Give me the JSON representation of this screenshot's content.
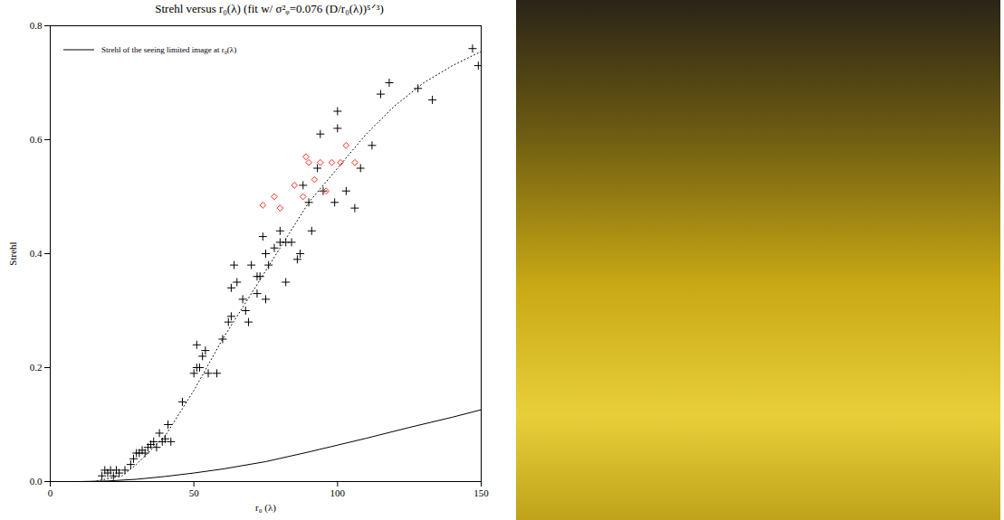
{
  "chart_data": {
    "type": "scatter",
    "title": "Strehl versus r₀(λ) (fit w/ σ²ᵩ=0.076 (D/r₀(λ))⁵ᐟ³)",
    "x_label": "r₀ (λ)",
    "y_label": "Strehl",
    "xlim": [
      0,
      150
    ],
    "xticks": [
      0,
      50,
      100,
      150
    ],
    "ylim": [
      0,
      0.8
    ],
    "yticks": [
      {
        "value": 0,
        "label": "0.0"
      },
      0.2,
      0.4,
      0.6,
      0.8
    ],
    "legend": "upper left",
    "series": [
      {
        "type": "scatter",
        "marker": "plus",
        "color": "#000000",
        "x": [
          18,
          19,
          20,
          21,
          22,
          23,
          24,
          26,
          28,
          29,
          30,
          31,
          32,
          33,
          34,
          35,
          36,
          37,
          38,
          39,
          40,
          41,
          42,
          46,
          50,
          51,
          51,
          52,
          53,
          54,
          55,
          58,
          60,
          62,
          63,
          63,
          64,
          65,
          67,
          68,
          69,
          70,
          72,
          72,
          73,
          74,
          75,
          75,
          76,
          78,
          80,
          80,
          82,
          82,
          84,
          86,
          87,
          88,
          90,
          91,
          93,
          94,
          95,
          99,
          100,
          100,
          103,
          106,
          108,
          112,
          115,
          118,
          128,
          133,
          147,
          149
        ],
        "values": [
          0.01,
          0.02,
          0.015,
          0.02,
          0.01,
          0.02,
          0.015,
          0.02,
          0.03,
          0.04,
          0.05,
          0.05,
          0.055,
          0.05,
          0.06,
          0.065,
          0.07,
          0.06,
          0.085,
          0.07,
          0.075,
          0.1,
          0.07,
          0.14,
          0.19,
          0.2,
          0.24,
          0.2,
          0.22,
          0.23,
          0.19,
          0.19,
          0.25,
          0.28,
          0.29,
          0.34,
          0.38,
          0.35,
          0.32,
          0.3,
          0.28,
          0.38,
          0.33,
          0.36,
          0.36,
          0.43,
          0.4,
          0.32,
          0.38,
          0.41,
          0.44,
          0.42,
          0.42,
          0.35,
          0.42,
          0.39,
          0.4,
          0.52,
          0.49,
          0.44,
          0.55,
          0.61,
          0.51,
          0.49,
          0.62,
          0.65,
          0.51,
          0.48,
          0.55,
          0.59,
          0.68,
          0.7,
          0.69,
          0.67,
          0.76,
          0.73
        ]
      },
      {
        "type": "scatter",
        "marker": "diamond",
        "color": "#ff2a1a",
        "x": [
          74,
          78,
          80,
          85,
          88,
          89,
          90,
          92,
          94,
          96,
          98,
          101,
          103,
          106
        ],
        "values": [
          0.485,
          0.5,
          0.48,
          0.52,
          0.5,
          0.57,
          0.56,
          0.53,
          0.56,
          0.51,
          0.56,
          0.56,
          0.59,
          0.56
        ]
      },
      {
        "type": "line",
        "line_style": "dotted",
        "color": "#000000",
        "x": [
          15,
          25,
          30,
          40,
          50,
          60,
          70,
          80,
          90,
          100,
          110,
          120,
          130,
          140,
          150
        ],
        "values": [
          0,
          0.01,
          0.03,
          0.08,
          0.16,
          0.25,
          0.33,
          0.41,
          0.49,
          0.55,
          0.61,
          0.66,
          0.7,
          0.73,
          0.755
        ]
      },
      {
        "name": "Strehl of the seeing limited image at r₀(λ)",
        "type": "line",
        "line_style": "solid",
        "color": "#000000",
        "x": [
          10,
          20,
          30,
          40,
          50,
          60,
          75,
          90,
          100,
          110,
          125,
          140,
          150
        ],
        "values": [
          0,
          0.001,
          0.004,
          0.009,
          0.015,
          0.022,
          0.035,
          0.052,
          0.064,
          0.076,
          0.095,
          0.113,
          0.126
        ]
      }
    ]
  }
}
